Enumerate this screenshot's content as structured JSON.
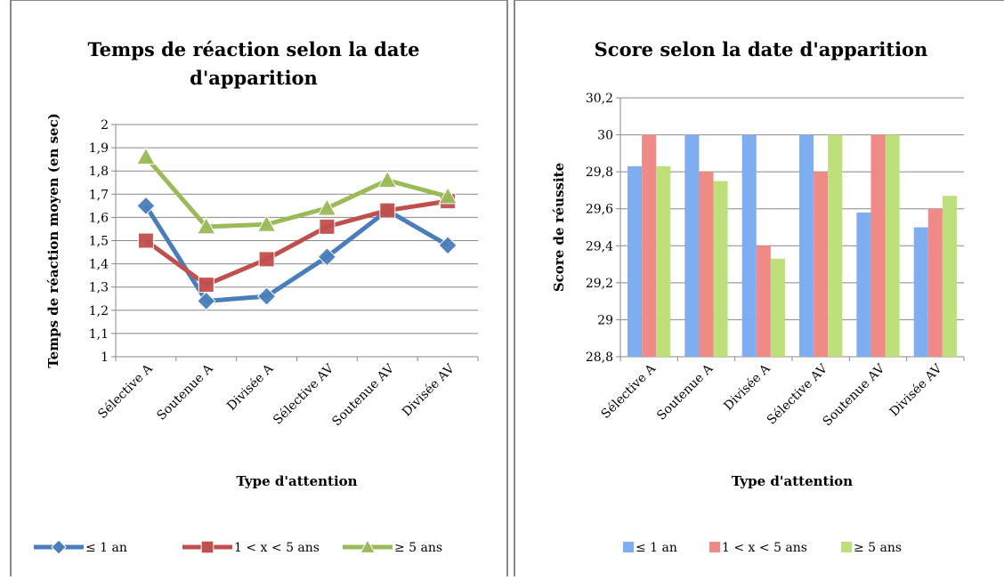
{
  "chart_data": [
    {
      "type": "line",
      "title": "Temps de réaction selon la date d'apparition",
      "y_label": "Temps de réaction moyen (en sec)",
      "x_label": "Type d'attention",
      "categories": [
        "Sélective A",
        "Soutenue A",
        "Divisée A",
        "Sélective AV",
        "Soutenue AV",
        "Divisée AV"
      ],
      "series": [
        {
          "name": "≤ 1 an",
          "color": "#4a7ebb",
          "marker": "diamond",
          "values": [
            1.65,
            1.24,
            1.26,
            1.43,
            1.63,
            1.48
          ]
        },
        {
          "name": "1 < x < 5 ans",
          "color": "#c0504d",
          "marker": "square",
          "values": [
            1.5,
            1.31,
            1.42,
            1.56,
            1.63,
            1.67
          ]
        },
        {
          "name": "≥ 5 ans",
          "color": "#9bbb59",
          "marker": "triangle",
          "values": [
            1.86,
            1.56,
            1.57,
            1.64,
            1.76,
            1.69
          ]
        }
      ],
      "ylim": [
        1,
        2
      ],
      "yticks": [
        1,
        {
          "value": 1.1,
          "label": "1,1"
        },
        {
          "value": 1.2,
          "label": "1,2"
        },
        {
          "value": 1.3,
          "label": "1,3"
        },
        {
          "value": 1.4,
          "label": "1,4"
        },
        {
          "value": 1.5,
          "label": "1,5"
        },
        {
          "value": 1.6,
          "label": "1,6"
        },
        {
          "value": 1.7,
          "label": "1,7"
        },
        {
          "value": 1.8,
          "label": "1,8"
        },
        {
          "value": 1.9,
          "label": "1,9"
        },
        2
      ],
      "grid": true,
      "legend": "bottom"
    },
    {
      "type": "bar",
      "title": "Score selon la date d'apparition",
      "y_label": "Score de réussite",
      "x_label": "Type d'attention",
      "categories": [
        "Sélective A",
        "Soutenue A",
        "Divisée A",
        "Sélective AV",
        "Soutenue AV",
        "Divisée AV"
      ],
      "series": [
        {
          "name": "≤ 1 an",
          "color": "#7eaef0",
          "values": [
            29.83,
            30,
            30,
            30,
            29.58,
            29.5
          ]
        },
        {
          "name": "1 < x < 5 ans",
          "color": "#f08a86",
          "values": [
            30,
            29.8,
            29.4,
            29.8,
            30,
            29.6
          ]
        },
        {
          "name": "≥ 5 ans",
          "color": "#bde07a",
          "values": [
            29.83,
            29.75,
            29.33,
            30,
            30,
            29.67
          ]
        }
      ],
      "ylim": [
        28.8,
        30.2
      ],
      "yticks": [
        {
          "value": 28.8,
          "label": "28,8"
        },
        29,
        {
          "value": 29.2,
          "label": "29,2"
        },
        {
          "value": 29.4,
          "label": "29,4"
        },
        {
          "value": 29.6,
          "label": "29,6"
        },
        {
          "value": 29.8,
          "label": "29,8"
        },
        30,
        {
          "value": 30.2,
          "label": "30,2"
        }
      ],
      "grid": true,
      "legend": "bottom"
    }
  ]
}
